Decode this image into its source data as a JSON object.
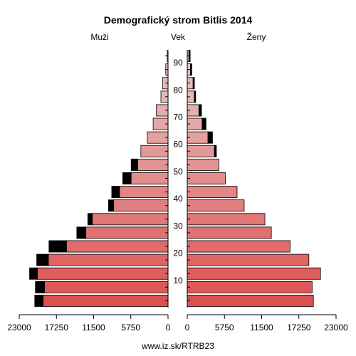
{
  "chart_data": {
    "type": "bar",
    "title": "Demografický strom Bitlis 2014",
    "left_label": "Muži",
    "center_label": "Vek",
    "right_label": "Ženy",
    "footer": "www.iz.sk/RTRB23",
    "x_ticks_left": [
      "23000",
      "17250",
      "11500",
      "5750",
      "0"
    ],
    "x_ticks_right": [
      "0",
      "5750",
      "11500",
      "17250",
      "23000"
    ],
    "x_tick_values": [
      23000,
      17250,
      11500,
      5750,
      0
    ],
    "xlim": [
      0,
      23000
    ],
    "age_ticks": [
      "10",
      "20",
      "30",
      "40",
      "50",
      "60",
      "70",
      "80",
      "90"
    ],
    "age_groups": [
      "0-4",
      "5-9",
      "10-14",
      "15-19",
      "20-24",
      "25-29",
      "30-34",
      "35-39",
      "40-44",
      "45-49",
      "50-54",
      "55-59",
      "60-64",
      "65-69",
      "70-74",
      "75-79",
      "80-84",
      "85-89",
      "90-94"
    ],
    "series": [
      {
        "name": "Muži",
        "base": [
          19300,
          19100,
          20200,
          18500,
          15700,
          12700,
          11700,
          8400,
          7500,
          5700,
          4700,
          4200,
          3200,
          2300,
          1800,
          1100,
          850,
          350,
          120
        ],
        "excess": [
          1300,
          1400,
          1200,
          1800,
          2700,
          1400,
          700,
          800,
          1200,
          1300,
          1000,
          0,
          0,
          0,
          0,
          0,
          0,
          0,
          0
        ]
      },
      {
        "name": "Ženy",
        "base": [
          19500,
          19300,
          20600,
          18800,
          15900,
          13000,
          12000,
          8800,
          7700,
          5900,
          4900,
          4200,
          3200,
          2300,
          1800,
          1100,
          900,
          500,
          250
        ],
        "excess": [
          0,
          0,
          0,
          0,
          0,
          0,
          0,
          0,
          0,
          0,
          0,
          300,
          700,
          600,
          400,
          200,
          200,
          200,
          200
        ]
      }
    ]
  }
}
